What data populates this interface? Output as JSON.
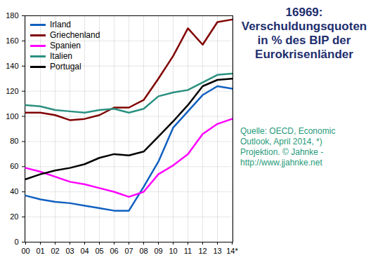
{
  "chart_data": {
    "type": "line",
    "title": "16969:\nVerschuldungsquoten\nin % des BIP der\nEurokrisenländer",
    "annotations": [
      "Quelle: OECD, Economic\nOutlook, April 2014, *)\nProjektion. © Jahnke -\nhttp://www.jjahnke.net"
    ],
    "categories": [
      "00",
      "01",
      "02",
      "03",
      "04",
      "05",
      "06",
      "07",
      "08",
      "09",
      "10",
      "11",
      "12",
      "13",
      "14*"
    ],
    "series": [
      {
        "name": "Irland",
        "color": "#1060c0",
        "values": [
          37,
          34,
          32,
          31,
          29,
          27,
          25,
          25,
          44,
          64,
          91,
          104,
          117,
          124,
          122
        ]
      },
      {
        "name": "Griechenland",
        "color": "#800000",
        "values": [
          103,
          103,
          101,
          97,
          98,
          101,
          107,
          107,
          113,
          130,
          148,
          170,
          157,
          175,
          177
        ]
      },
      {
        "name": "Spanien",
        "color": "#ff00ff",
        "values": [
          59,
          56,
          52,
          48,
          46,
          43,
          40,
          36,
          40,
          54,
          61,
          70,
          86,
          94,
          98
        ]
      },
      {
        "name": "Italien",
        "color": "#2a9080",
        "values": [
          109,
          108,
          105,
          104,
          103,
          105,
          106,
          103,
          106,
          116,
          119,
          121,
          127,
          133,
          134
        ]
      },
      {
        "name": "Portugal",
        "color": "#000000",
        "values": [
          50,
          54,
          57,
          59,
          62,
          67,
          70,
          69,
          72,
          84,
          96,
          109,
          124,
          129,
          130
        ]
      }
    ],
    "ylim": [
      0,
      180
    ],
    "yticks": [
      0,
      20,
      40,
      60,
      80,
      100,
      120,
      140,
      160,
      180
    ],
    "grid": true,
    "legend": "top-left"
  }
}
